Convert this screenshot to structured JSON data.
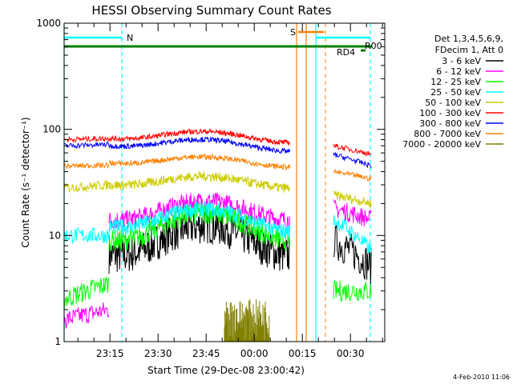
{
  "chart_data": {
    "type": "line",
    "title": "HESSI Observing Summary Count Rates",
    "xlabel": "Start Time (29-Dec-08 23:00:42)",
    "ylabel": "Count Rate (s⁻¹ detector⁻¹)",
    "y_scale": "log",
    "ylim": [
      1,
      1000
    ],
    "xlim_minutes": [
      0,
      100
    ],
    "y_tick_labels": [
      "1",
      "10",
      "100",
      "1000"
    ],
    "x_tick_labels": [
      "23:15",
      "23:30",
      "23:45",
      "00:00",
      "00:15",
      "00:30"
    ],
    "legend_header": [
      "Det 1,3,4,5,6,9,",
      "FDecim 1, Att 0"
    ],
    "legend_position": "right",
    "timestamp": "4-Feb-2010 11:06",
    "flags": [
      {
        "label": "N",
        "color": "#00ffff"
      },
      {
        "label": "S",
        "color": "#ff8000"
      },
      {
        "label": "R00",
        "color": "#008000"
      },
      {
        "label": "RD4",
        "color": "#008000"
      }
    ],
    "series": [
      {
        "name": "3 - 6 keV",
        "color": "#000000"
      },
      {
        "name": "6 - 12 keV",
        "color": "#ff00ff"
      },
      {
        "name": "12 - 25 keV",
        "color": "#00ff00"
      },
      {
        "name": "25 - 50 keV",
        "color": "#00ffff"
      },
      {
        "name": "50 - 100 keV",
        "color": "#cccc00"
      },
      {
        "name": "100 - 300 keV",
        "color": "#ff0000"
      },
      {
        "name": "300 - 800 keV",
        "color": "#0000ff"
      },
      {
        "name": "800 - 7000 keV",
        "color": "#ff8000"
      },
      {
        "name": "7000 - 20000 keV",
        "color": "#808000"
      }
    ]
  }
}
